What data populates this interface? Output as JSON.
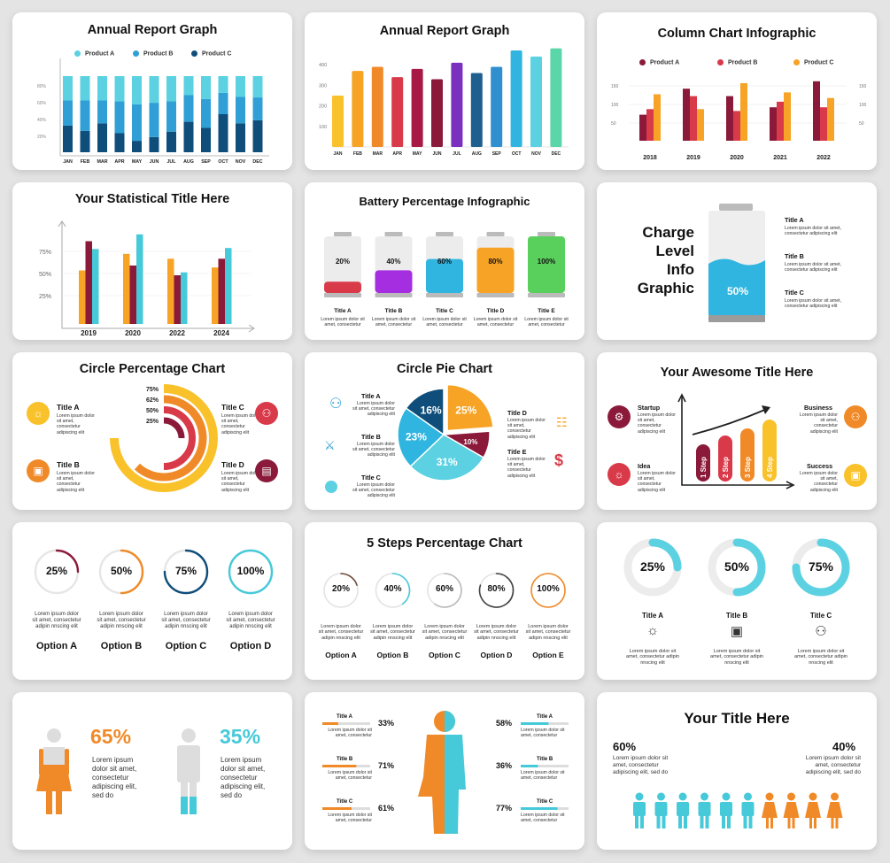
{
  "colors": {
    "cyan": "#5bd1e1",
    "blue": "#2f9fd6",
    "navy": "#0f4e7a",
    "maroon": "#8b1a3a",
    "red": "#d93a4a",
    "orange": "#f7a325",
    "orange2": "#f08a28",
    "yellow": "#f9c12a",
    "green": "#5ad05c",
    "purple": "#a52ee0",
    "teal": "#46c9d9",
    "grey": "#d3d3d3"
  },
  "lorem": "Lorem ipsum dolor sit amet, consectetur adipiscing elit",
  "c1": {
    "title": "Annual Report Graph",
    "legend": [
      "Product A",
      "Product B",
      "Product C"
    ],
    "yticks": [
      "80%",
      "60%",
      "40%",
      "20%"
    ],
    "chart_data": {
      "type": "bar",
      "title": "Annual Report Graph",
      "categories": [
        "JAN",
        "FEB",
        "MAR",
        "APR",
        "MAY",
        "JUN",
        "JUL",
        "AUG",
        "SEP",
        "OCT",
        "NOV",
        "DEC"
      ],
      "series": [
        {
          "name": "Product C",
          "values": [
            35,
            28,
            38,
            25,
            15,
            20,
            27,
            40,
            32,
            50,
            38,
            42
          ]
        },
        {
          "name": "Product B",
          "values": [
            33,
            40,
            30,
            42,
            48,
            45,
            40,
            35,
            38,
            28,
            35,
            30
          ]
        },
        {
          "name": "Product A",
          "values": [
            32,
            32,
            32,
            33,
            37,
            35,
            33,
            25,
            30,
            22,
            27,
            28
          ]
        }
      ]
    }
  },
  "c2": {
    "title": "Annual Report Graph",
    "yticks": [
      "400",
      "300",
      "200",
      "100"
    ],
    "chart_data": {
      "type": "bar",
      "title": "Annual Report Graph",
      "categories": [
        "JAN",
        "FEB",
        "MAR",
        "APR",
        "MAY",
        "JUN",
        "JUL",
        "AUG",
        "SEP",
        "OCT",
        "NOV",
        "DEC"
      ],
      "values": [
        250,
        370,
        390,
        340,
        380,
        330,
        410,
        360,
        390,
        470,
        440,
        480
      ],
      "ylim": [
        0,
        500
      ]
    }
  },
  "c3": {
    "title": "Column Chart Infographic",
    "legend": [
      "Product A",
      "Product B",
      "Product C"
    ],
    "yticks": [
      "150",
      "100",
      "50"
    ],
    "chart_data": {
      "type": "bar",
      "title": "Column Chart Infographic",
      "categories": [
        "2018",
        "2019",
        "2020",
        "2021",
        "2022"
      ],
      "series": [
        {
          "name": "Product A",
          "values": [
            70,
            140,
            120,
            90,
            160
          ]
        },
        {
          "name": "Product B",
          "values": [
            85,
            120,
            80,
            105,
            90
          ]
        },
        {
          "name": "Product C",
          "values": [
            125,
            85,
            155,
            130,
            115
          ]
        }
      ],
      "ylim": [
        0,
        175
      ]
    }
  },
  "c4": {
    "title": "Your Statistical Title Here",
    "yticks": [
      "75%",
      "50%",
      "25%"
    ],
    "chart_data": {
      "type": "bar",
      "title": "Your Statistical Title Here",
      "categories": [
        "2019",
        "2020",
        "2022",
        "2024"
      ],
      "series": [
        {
          "values": [
            55,
            72,
            67,
            58
          ]
        },
        {
          "values": [
            85,
            60,
            50,
            67
          ]
        },
        {
          "values": [
            77,
            92,
            53,
            78
          ]
        }
      ],
      "ylim": [
        0,
        100
      ]
    }
  },
  "c5": {
    "title": "Battery Percentage Infographic",
    "items": [
      {
        "pct": "20%",
        "title": "Title A",
        "fill": 20
      },
      {
        "pct": "40%",
        "title": "Title B",
        "fill": 40
      },
      {
        "pct": "60%",
        "title": "Title C",
        "fill": 60
      },
      {
        "pct": "80%",
        "title": "Title D",
        "fill": 80
      },
      {
        "pct": "100%",
        "title": "Title E",
        "fill": 100
      }
    ],
    "desc": "Lorem ipsum dolor sit amet, consectetur"
  },
  "c6": {
    "title_lines": [
      "Charge",
      "Level",
      "Info",
      "Graphic"
    ],
    "pct": "50%",
    "items": [
      {
        "title": "Title A"
      },
      {
        "title": "Title B"
      },
      {
        "title": "Title C"
      }
    ]
  },
  "c7": {
    "title": "Circle Percentage Chart",
    "rings": [
      "75%",
      "62%",
      "50%",
      "25%"
    ],
    "items": [
      {
        "title": "Title A",
        "icon": "bulb-icon"
      },
      {
        "title": "Title B",
        "icon": "briefcase-icon"
      },
      {
        "title": "Title C",
        "icon": "people-icon"
      },
      {
        "title": "Title D",
        "icon": "chart-icon"
      }
    ]
  },
  "c8": {
    "title": "Circle Pie Chart",
    "items": [
      {
        "title": "Title A"
      },
      {
        "title": "Title B"
      },
      {
        "title": "Title C"
      },
      {
        "title": "Title D"
      },
      {
        "title": "Title E"
      }
    ],
    "chart_data": {
      "type": "pie",
      "title": "Circle Pie Chart",
      "labels": [
        "25%",
        "10%",
        "31%",
        "23%",
        "16%"
      ],
      "values": [
        25,
        10,
        31,
        23,
        16
      ]
    }
  },
  "c9": {
    "title": "Your Awesome Title Here",
    "steps": [
      "1 Step",
      "2 Step",
      "3 Step",
      "4 Step"
    ],
    "items": [
      {
        "title": "Startup"
      },
      {
        "title": "Idea"
      },
      {
        "title": "Business"
      },
      {
        "title": "Success"
      }
    ]
  },
  "c10": {
    "items": [
      {
        "pct": "25%",
        "title": "Option A",
        "value": 25
      },
      {
        "pct": "50%",
        "title": "Option B",
        "value": 50
      },
      {
        "pct": "75%",
        "title": "Option C",
        "value": 75
      },
      {
        "pct": "100%",
        "title": "Option D",
        "value": 100
      }
    ],
    "desc": "Lorem ipsum dolor sit amet, consectetur adipin nnscing elit"
  },
  "c11": {
    "title": "5 Steps Percentage Chart",
    "items": [
      {
        "pct": "20%",
        "title": "Option A",
        "value": 20
      },
      {
        "pct": "40%",
        "title": "Option B",
        "value": 40
      },
      {
        "pct": "60%",
        "title": "Option C",
        "value": 60
      },
      {
        "pct": "80%",
        "title": "Option D",
        "value": 80
      },
      {
        "pct": "100%",
        "title": "Option E",
        "value": 100
      }
    ],
    "desc": "Lorem ipsum dolor sit amet, consectetur adipin nnscing elit"
  },
  "c12": {
    "items": [
      {
        "pct": "25%",
        "title": "Title A",
        "value": 25
      },
      {
        "pct": "50%",
        "title": "Title B",
        "value": 50
      },
      {
        "pct": "75%",
        "title": "Title C",
        "value": 75
      }
    ],
    "desc": "Lorem ipsum dolor sit amet, consectetur adipin nnscing elit"
  },
  "c13": {
    "items": [
      {
        "pct": "65%",
        "value": 65
      },
      {
        "pct": "35%",
        "value": 35
      }
    ],
    "desc": "Lorem ipsum dolor sit amet, consectetur adipiscing elit, sed do"
  },
  "c14": {
    "left": [
      {
        "title": "Title A",
        "pct": "33%",
        "value": 33
      },
      {
        "title": "Title B",
        "pct": "71%",
        "value": 71
      },
      {
        "title": "Title C",
        "pct": "61%",
        "value": 61
      }
    ],
    "right": [
      {
        "title": "Title A",
        "pct": "58%",
        "value": 58
      },
      {
        "title": "Title B",
        "pct": "36%",
        "value": 36
      },
      {
        "title": "Title C",
        "pct": "77%",
        "value": 77
      }
    ],
    "desc": "Lorem ipsum dolor sit amet, consectetur"
  },
  "c15": {
    "title": "Your Title Here",
    "left": {
      "pct": "60%"
    },
    "right": {
      "pct": "40%"
    },
    "desc": "Lorem ipsum dolor sit amet, consectetur adipiscing elit, sed do",
    "people_cyan": 6,
    "people_orange": 4
  }
}
